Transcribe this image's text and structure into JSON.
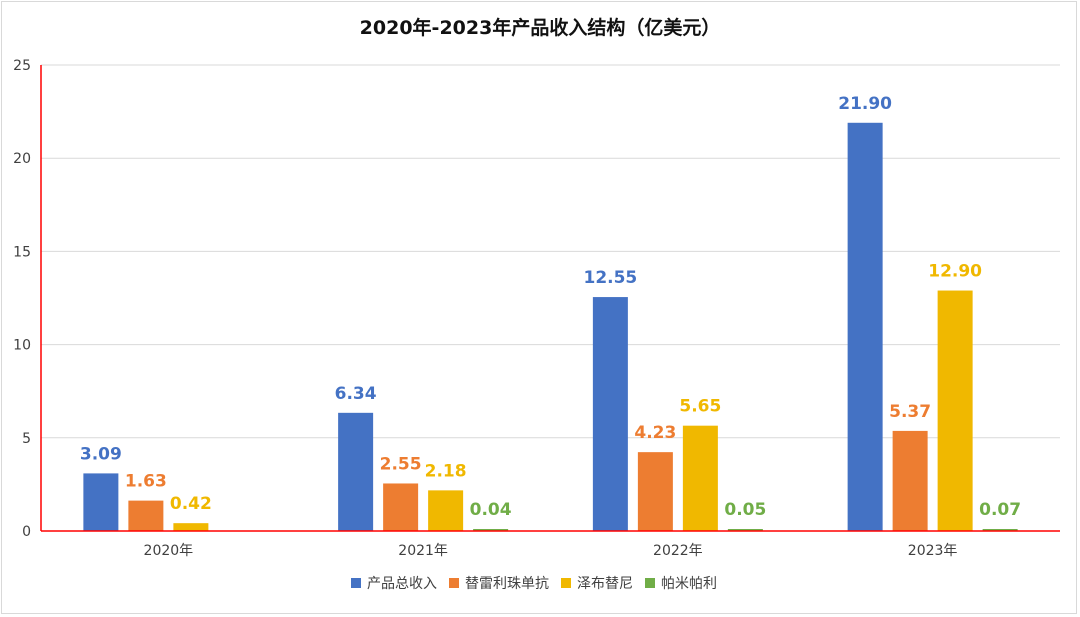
{
  "chart_data": {
    "type": "bar",
    "title": "2020年-2023年产品收入结构（亿美元）",
    "xlabel": "",
    "ylabel": "",
    "ylim": [
      0,
      25
    ],
    "yticks": [
      0,
      5,
      10,
      15,
      20,
      25
    ],
    "grid": true,
    "legend_position": "bottom",
    "categories": [
      "2020年",
      "2021年",
      "2022年",
      "2023年"
    ],
    "series": [
      {
        "name": "产品总收入",
        "color": "#4472C4",
        "values": [
          3.09,
          6.34,
          12.55,
          21.9
        ],
        "labels": [
          "3.09",
          "6.34",
          "12.55",
          "21.90"
        ]
      },
      {
        "name": "替雷利珠单抗",
        "color": "#ED7D31",
        "values": [
          1.63,
          2.55,
          4.23,
          5.37
        ],
        "labels": [
          "1.63",
          "2.55",
          "4.23",
          "5.37"
        ]
      },
      {
        "name": "泽布替尼",
        "color": "#F0B800",
        "values": [
          0.42,
          2.18,
          5.65,
          12.9
        ],
        "labels": [
          "0.42",
          "2.18",
          "5.65",
          "12.90"
        ]
      },
      {
        "name": "帕米帕利",
        "color": "#70AD47",
        "values": [
          null,
          0.04,
          0.05,
          0.07
        ],
        "labels": [
          null,
          "0.04",
          "0.05",
          "0.07"
        ]
      }
    ],
    "axis_color": "#FF0000",
    "grid_color": "#D9D9D9"
  }
}
